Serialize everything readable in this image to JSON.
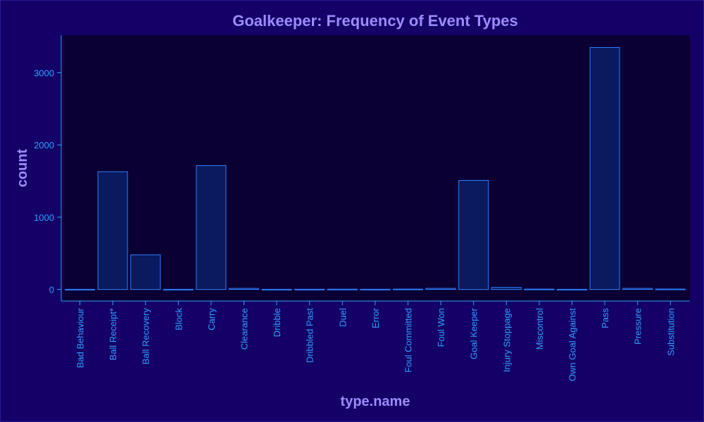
{
  "chart_data": {
    "type": "bar",
    "title": "Goalkeeper: Frequency of Event Types",
    "xlabel": "type.name",
    "ylabel": "count",
    "categories": [
      "Bad Behaviour",
      "Ball Receipt*",
      "Ball Recovery",
      "Block",
      "Carry",
      "Clearance",
      "Dribble",
      "Dribbled Past",
      "Duel",
      "Error",
      "Foul Committed",
      "Foul Won",
      "Goal Keeper",
      "Injury Stoppage",
      "Miscontrol",
      "Own Goal Against",
      "Pass",
      "Pressure",
      "Substitution"
    ],
    "values": [
      2,
      1630,
      480,
      2,
      1715,
      15,
      2,
      3,
      4,
      3,
      5,
      15,
      1510,
      28,
      5,
      2,
      3350,
      15,
      6
    ],
    "yticks": [
      0,
      1000,
      2000,
      3000
    ],
    "ylim": [
      -160,
      3520
    ],
    "grid": false,
    "legend": "none",
    "colors": {
      "background": "#140066",
      "plot_background": "#0a0033",
      "bar_fill": "#0a1a5e",
      "bar_stroke": "#2e7fff",
      "axis": "#2ea0ff",
      "title": "#9b8cff"
    }
  }
}
